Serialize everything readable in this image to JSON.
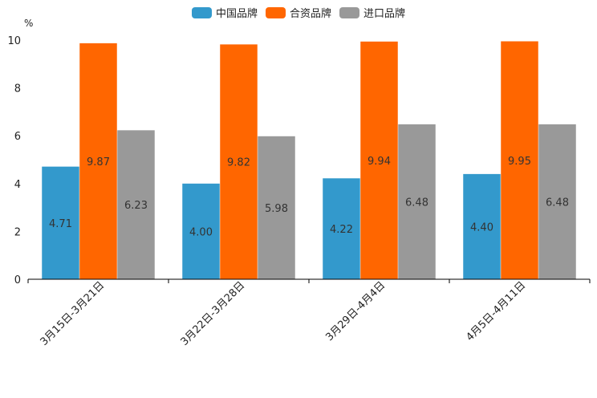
{
  "chart_data": {
    "type": "bar",
    "title": "",
    "xlabel": "",
    "ylabel": "%",
    "ylim": [
      0,
      10
    ],
    "yticks": [
      0,
      2,
      4,
      6,
      8,
      10
    ],
    "grid": false,
    "legend_position": "top-center",
    "categories": [
      "3月15日-3月21日",
      "3月22日-3月28日",
      "3月29日-4月4日",
      "4月5日-4月11日"
    ],
    "series": [
      {
        "name": "中国品牌",
        "color": "#3399cc",
        "values": [
          4.71,
          4.0,
          4.22,
          4.4
        ],
        "labels": [
          "4.71",
          "4.00",
          "4.22",
          "4.40"
        ]
      },
      {
        "name": "合资品牌",
        "color": "#ff6600",
        "values": [
          9.87,
          9.82,
          9.94,
          9.95
        ],
        "labels": [
          "9.87",
          "9.82",
          "9.94",
          "9.95"
        ]
      },
      {
        "name": "进口品牌",
        "color": "#999999",
        "values": [
          6.23,
          5.98,
          6.48,
          6.48
        ],
        "labels": [
          "6.23",
          "5.98",
          "6.48",
          "6.48"
        ]
      }
    ]
  }
}
